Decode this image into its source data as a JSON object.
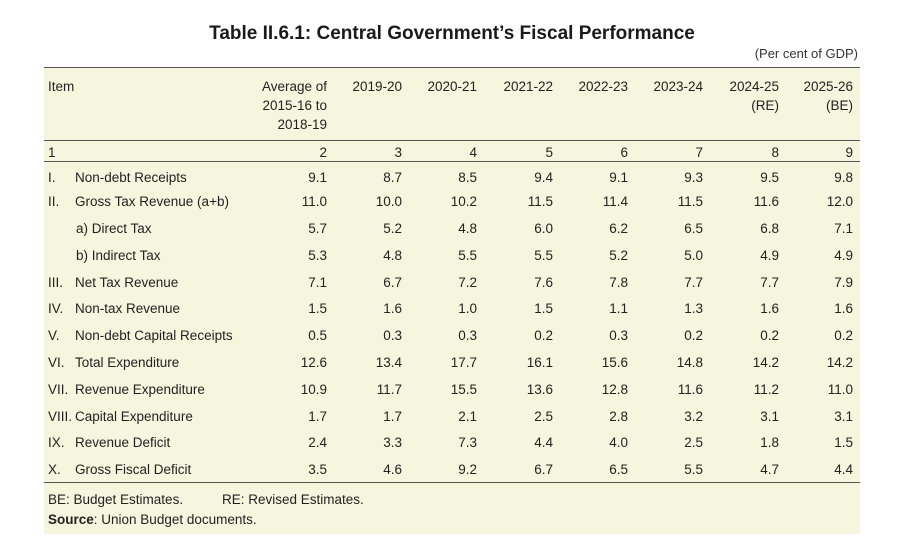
{
  "title": "Table II.6.1: Central Government’s Fiscal Performance",
  "unit": "(Per cent of GDP)",
  "columns": [
    "Item",
    "Average of\n2015-16 to\n2018-19",
    "2019-20",
    "2020-21",
    "2021-22",
    "2022-23",
    "2023-24",
    "2024-25\n(RE)",
    "2025-26\n(BE)"
  ],
  "column_numbers": [
    "1",
    "2",
    "3",
    "4",
    "5",
    "6",
    "7",
    "8",
    "9"
  ],
  "rows": [
    {
      "num": "I.",
      "label": "Non-debt Receipts",
      "values": [
        "9.1",
        "8.7",
        "8.5",
        "9.4",
        "9.1",
        "9.3",
        "9.5",
        "9.8"
      ]
    },
    {
      "num": "II.",
      "label": "Gross Tax Revenue (a+b)",
      "values": [
        "11.0",
        "10.0",
        "10.2",
        "11.5",
        "11.4",
        "11.5",
        "11.6",
        "12.0"
      ]
    },
    {
      "num": "",
      "label": "a) Direct Tax",
      "values": [
        "5.7",
        "5.2",
        "4.8",
        "6.0",
        "6.2",
        "6.5",
        "6.8",
        "7.1"
      ]
    },
    {
      "num": "",
      "label": "b) Indirect Tax",
      "values": [
        "5.3",
        "4.8",
        "5.5",
        "5.5",
        "5.2",
        "5.0",
        "4.9",
        "4.9"
      ]
    },
    {
      "num": "III.",
      "label": "Net Tax Revenue",
      "values": [
        "7.1",
        "6.7",
        "7.2",
        "7.6",
        "7.8",
        "7.7",
        "7.7",
        "7.9"
      ]
    },
    {
      "num": "IV.",
      "label": "Non-tax Revenue",
      "values": [
        "1.5",
        "1.6",
        "1.0",
        "1.5",
        "1.1",
        "1.3",
        "1.6",
        "1.6"
      ]
    },
    {
      "num": "V.",
      "label": "Non-debt Capital Receipts",
      "values": [
        "0.5",
        "0.3",
        "0.3",
        "0.2",
        "0.3",
        "0.2",
        "0.2",
        "0.2"
      ]
    },
    {
      "num": "VI.",
      "label": "Total Expenditure",
      "values": [
        "12.6",
        "13.4",
        "17.7",
        "16.1",
        "15.6",
        "14.8",
        "14.2",
        "14.2"
      ]
    },
    {
      "num": "VII.",
      "label": "Revenue Expenditure",
      "values": [
        "10.9",
        "11.7",
        "15.5",
        "13.6",
        "12.8",
        "11.6",
        "11.2",
        "11.0"
      ]
    },
    {
      "num": "VIII.",
      "label": "Capital Expenditure",
      "values": [
        "1.7",
        "1.7",
        "2.1",
        "2.5",
        "2.8",
        "3.2",
        "3.1",
        "3.1"
      ]
    },
    {
      "num": "IX.",
      "label": "Revenue Deficit",
      "values": [
        "2.4",
        "3.3",
        "7.3",
        "4.4",
        "4.0",
        "2.5",
        "1.8",
        "1.5"
      ]
    },
    {
      "num": "X.",
      "label": "Gross Fiscal Deficit",
      "values": [
        "3.5",
        "4.6",
        "9.2",
        "6.7",
        "6.5",
        "5.5",
        "4.7",
        "4.4"
      ]
    }
  ],
  "notes": {
    "be": "BE: Budget Estimates.",
    "re": "RE: Revised Estimates.",
    "source_label": "Source",
    "source_text": ": Union Budget documents."
  }
}
